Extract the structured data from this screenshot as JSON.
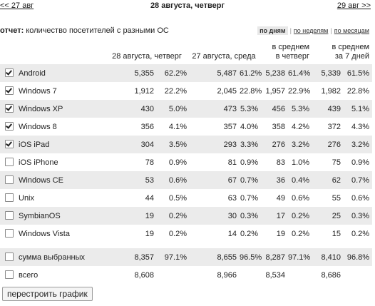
{
  "nav": {
    "prev_label": "<< 27 авг",
    "current_date": "28 августа, четверг",
    "next_label": "29 авг >>"
  },
  "report": {
    "label": "отчет:",
    "title": "количество посетителей с разными ОС",
    "periods": {
      "day": "по дням",
      "week": "по неделям",
      "month": "по месяцам",
      "active": "day"
    }
  },
  "columns": {
    "c1": "28 августа, четверг",
    "c2": "27 августа, среда",
    "c3_l1": "в среднем",
    "c3_l2": "в четверг",
    "c4_l1": "в среднем",
    "c4_l2": "за 7 дней"
  },
  "rows": [
    {
      "name": "Android",
      "checked": true,
      "v1": "5,355",
      "p1": "62.2%",
      "v2": "5,487",
      "p2": "61.2%",
      "v3": "5,238",
      "p3": "61.4%",
      "v4": "5,339",
      "p4": "61.5%"
    },
    {
      "name": "Windows 7",
      "checked": true,
      "v1": "1,912",
      "p1": "22.2%",
      "v2": "2,045",
      "p2": "22.8%",
      "v3": "1,957",
      "p3": "22.9%",
      "v4": "1,982",
      "p4": "22.8%"
    },
    {
      "name": "Windows XP",
      "checked": true,
      "v1": "430",
      "p1": "5.0%",
      "v2": "473",
      "p2": "5.3%",
      "v3": "456",
      "p3": "5.3%",
      "v4": "439",
      "p4": "5.1%"
    },
    {
      "name": "Windows 8",
      "checked": true,
      "v1": "356",
      "p1": "4.1%",
      "v2": "357",
      "p2": "4.0%",
      "v3": "358",
      "p3": "4.2%",
      "v4": "372",
      "p4": "4.3%"
    },
    {
      "name": "iOS iPad",
      "checked": true,
      "v1": "304",
      "p1": "3.5%",
      "v2": "293",
      "p2": "3.3%",
      "v3": "276",
      "p3": "3.2%",
      "v4": "276",
      "p4": "3.2%"
    },
    {
      "name": "iOS iPhone",
      "checked": false,
      "v1": "78",
      "p1": "0.9%",
      "v2": "81",
      "p2": "0.9%",
      "v3": "83",
      "p3": "1.0%",
      "v4": "75",
      "p4": "0.9%"
    },
    {
      "name": "Windows CE",
      "checked": false,
      "v1": "53",
      "p1": "0.6%",
      "v2": "67",
      "p2": "0.7%",
      "v3": "36",
      "p3": "0.4%",
      "v4": "62",
      "p4": "0.7%"
    },
    {
      "name": "Unix",
      "checked": false,
      "v1": "44",
      "p1": "0.5%",
      "v2": "63",
      "p2": "0.7%",
      "v3": "49",
      "p3": "0.6%",
      "v4": "55",
      "p4": "0.6%"
    },
    {
      "name": "SymbianOS",
      "checked": false,
      "v1": "19",
      "p1": "0.2%",
      "v2": "30",
      "p2": "0.3%",
      "v3": "17",
      "p3": "0.2%",
      "v4": "25",
      "p4": "0.3%"
    },
    {
      "name": "Windows Vista",
      "checked": false,
      "v1": "19",
      "p1": "0.2%",
      "v2": "14",
      "p2": "0.2%",
      "v3": "19",
      "p3": "0.2%",
      "v4": "15",
      "p4": "0.2%"
    }
  ],
  "summary": [
    {
      "name": "сумма выбранных",
      "checked": false,
      "v1": "8,357",
      "p1": "97.1%",
      "v2": "8,655",
      "p2": "96.5%",
      "v3": "8,287",
      "p3": "97.1%",
      "v4": "8,410",
      "p4": "96.8%"
    },
    {
      "name": "всего",
      "checked": false,
      "v1": "8,608",
      "p1": "",
      "v2": "8,966",
      "p2": "",
      "v3": "8,534",
      "p3": "",
      "v4": "8,686",
      "p4": ""
    }
  ],
  "button": {
    "rebuild_label": "перестроить график"
  }
}
